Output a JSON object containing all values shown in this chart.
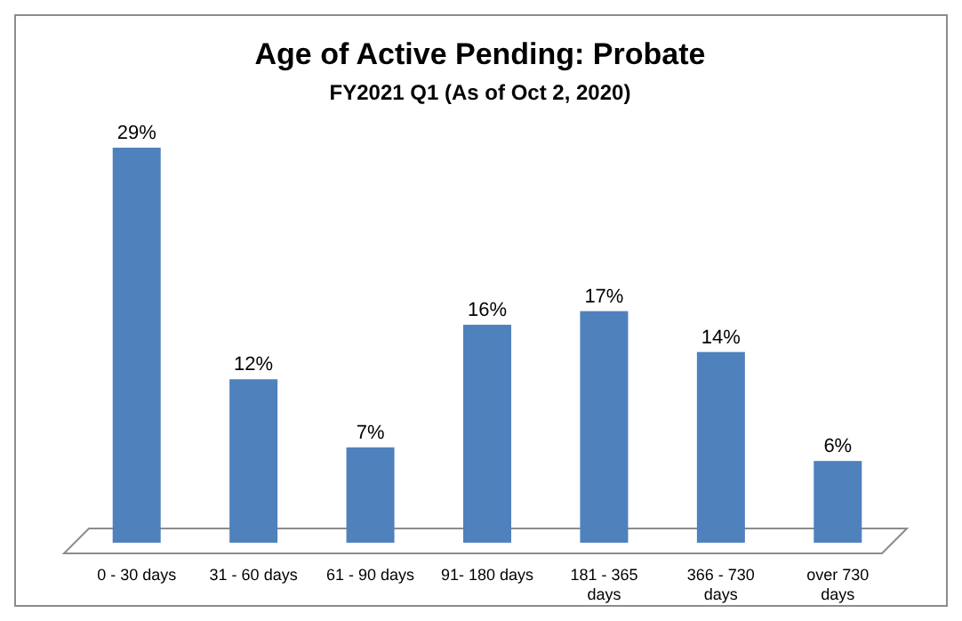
{
  "chart_data": {
    "type": "bar",
    "title": "Age of Active Pending: Probate",
    "subtitle": "FY2021  Q1 (As of Oct 2, 2020)",
    "categories": [
      "0 - 30 days",
      "31 - 60 days",
      "61 - 90 days",
      "91- 180 days",
      "181 - 365 days",
      "366 - 730 days",
      "over 730 days"
    ],
    "values": [
      29,
      12,
      7,
      16,
      17,
      14,
      6
    ],
    "value_labels": [
      "29%",
      "12%",
      "7%",
      "16%",
      "17%",
      "14%",
      "6%"
    ],
    "color": "#4f81bd"
  }
}
